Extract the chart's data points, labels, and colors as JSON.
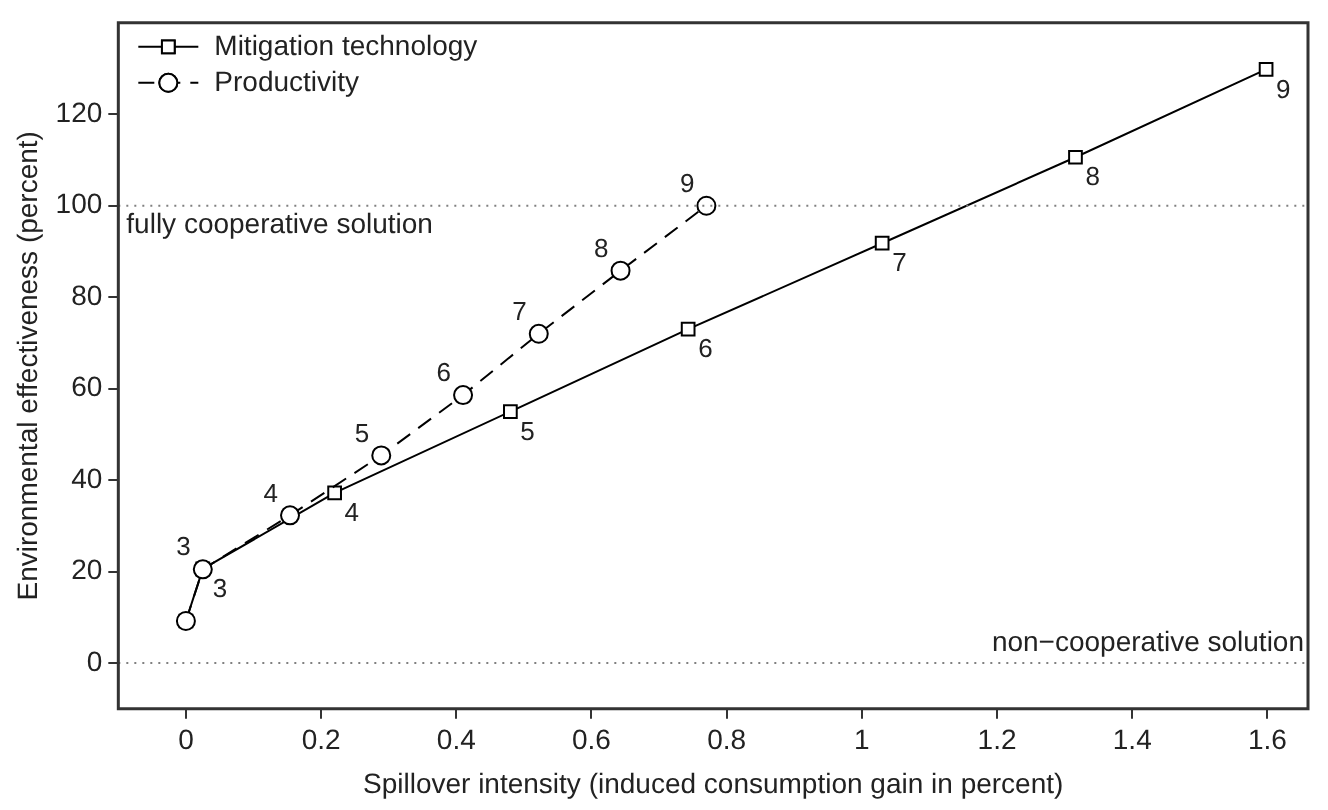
{
  "chart_data": {
    "type": "line",
    "xlabel": "Spillover intensity (induced consumption gain in percent)",
    "ylabel": "Environmental effectiveness (percent)",
    "xlim": [
      -0.1,
      1.66
    ],
    "ylim": [
      -10,
      140
    ],
    "xticks": [
      0,
      0.2,
      0.4,
      0.6,
      0.8,
      1,
      1.2,
      1.4,
      1.6
    ],
    "yticks": [
      0,
      20,
      40,
      60,
      80,
      100,
      120
    ],
    "grid": false,
    "legend": "top left",
    "series": [
      {
        "name": "Mitigation technology",
        "color": "#000000",
        "marker": "square",
        "line_style": "solid",
        "x": [
          0,
          0.025,
          0.22,
          0.48,
          0.743,
          1.03,
          1.316,
          1.598
        ],
        "values": [
          9.2,
          20.6,
          37.2,
          55,
          73,
          91.8,
          110.6,
          129.8
        ]
      },
      {
        "name": "Productivity",
        "color": "#000000",
        "marker": "circle",
        "line_style": "dashed",
        "x": [
          0,
          0.025,
          0.154,
          0.289,
          0.41,
          0.522,
          0.643,
          0.77
        ],
        "values": [
          9.2,
          20.5,
          32.3,
          45.4,
          58.6,
          72,
          85.8,
          100
        ]
      }
    ],
    "annotations": [
      {
        "text": "3",
        "x": 0.025,
        "y": 20.6
      },
      {
        "text": "4",
        "x": 0.22,
        "y": 37.2
      },
      {
        "text": "5",
        "x": 0.48,
        "y": 55
      },
      {
        "text": "6",
        "x": 0.743,
        "y": 73
      },
      {
        "text": "7",
        "x": 1.03,
        "y": 91.8
      },
      {
        "text": "8",
        "x": 1.316,
        "y": 110.6
      },
      {
        "text": "9",
        "x": 1.598,
        "y": 129.8
      },
      {
        "text": "3",
        "x": 0.025,
        "y": 20.5
      },
      {
        "text": "4",
        "x": 0.154,
        "y": 32.3
      },
      {
        "text": "5",
        "x": 0.289,
        "y": 45.4
      },
      {
        "text": "6",
        "x": 0.41,
        "y": 58.6
      },
      {
        "text": "7",
        "x": 0.522,
        "y": 72
      },
      {
        "text": "8",
        "x": 0.643,
        "y": 85.8
      },
      {
        "text": "9",
        "x": 0.77,
        "y": 100
      }
    ],
    "ref_lines": [
      {
        "axis": "y",
        "value": 0,
        "label": "non−cooperative solution",
        "color": "#808080",
        "line_style": "dotted"
      },
      {
        "axis": "y",
        "value": 100,
        "label": "fully cooperative solution",
        "color": "#808080",
        "line_style": "dotted"
      }
    ]
  }
}
